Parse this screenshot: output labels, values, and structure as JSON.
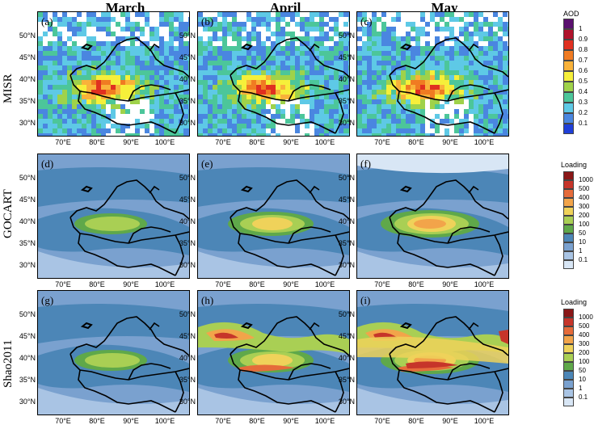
{
  "columns": [
    "March",
    "April",
    "May"
  ],
  "rows": [
    "MISR",
    "GOCART",
    "Shao2011"
  ],
  "panels": [
    "(a)",
    "(b)",
    "(c)",
    "(d)",
    "(e)",
    "(f)",
    "(g)",
    "(h)",
    "(i)"
  ],
  "lat_ticks": [
    "50°N",
    "45°N",
    "40°N",
    "35°N",
    "30°N"
  ],
  "lon_ticks": [
    "70°E",
    "80°E",
    "90°E",
    "100°E"
  ],
  "colorbar_aod": {
    "title": "AOD",
    "ticks": [
      "1",
      "0.9",
      "0.8",
      "0.7",
      "0.6",
      "0.5",
      "0.4",
      "0.3",
      "0.2",
      "0.1"
    ],
    "colors": [
      "#5a0f6e",
      "#b0122b",
      "#e03020",
      "#f07b22",
      "#f9b23a",
      "#f6ef3a",
      "#9fd24a",
      "#4cc69a",
      "#5ec9e6",
      "#4a86e0",
      "#1f3fd8"
    ]
  },
  "colorbar_loading_1": {
    "title": "Loading",
    "ticks": [
      "1000",
      "500",
      "400",
      "300",
      "200",
      "100",
      "50",
      "10",
      "1",
      "0.1"
    ],
    "colors": [
      "#8a1717",
      "#c6352a",
      "#e56b3a",
      "#f2a44a",
      "#efd25a",
      "#a9cf54",
      "#5fa84a",
      "#4c86b7",
      "#7aa1cf",
      "#a9c4e4",
      "#d8e6f5"
    ]
  },
  "colorbar_loading_2": {
    "title": "Loading",
    "ticks": [
      "1000",
      "500",
      "400",
      "300",
      "200",
      "100",
      "50",
      "10",
      "1",
      "0.1"
    ],
    "colors": [
      "#8a1717",
      "#c6352a",
      "#e56b3a",
      "#f2a44a",
      "#efd25a",
      "#a9cf54",
      "#5fa84a",
      "#4c86b7",
      "#7aa1cf",
      "#a9c4e4",
      "#d8e6f5"
    ]
  }
}
